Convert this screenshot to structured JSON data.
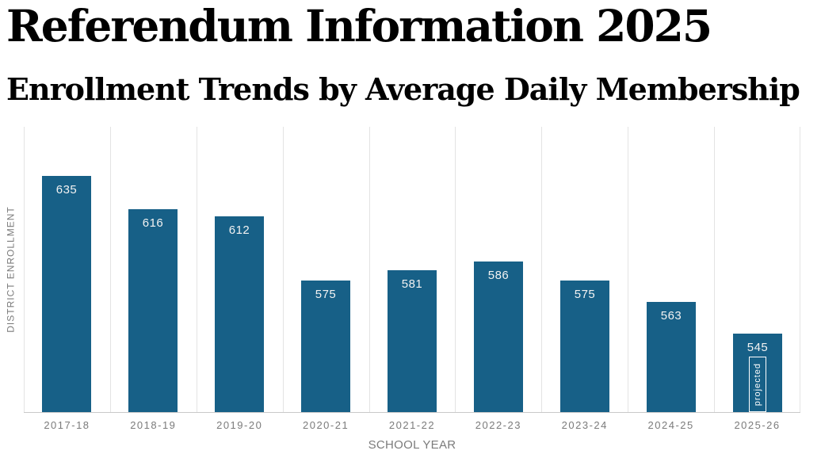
{
  "page": {
    "title": "Referendum Information 2025",
    "subtitle": "Enrollment Trends by Average Daily Membership"
  },
  "chart_data": {
    "type": "bar",
    "title": "Enrollment Trends by Average Daily Membership",
    "xlabel": "SCHOOL YEAR",
    "ylabel": "DISTRICT ENROLLMENT",
    "categories": [
      "2017-18",
      "2018-19",
      "2019-20",
      "2020-21",
      "2021-22",
      "2022-23",
      "2023-24",
      "2024-25",
      "2025-26"
    ],
    "values": [
      635,
      616,
      612,
      575,
      581,
      586,
      575,
      563,
      545
    ],
    "ylim": [
      500,
      663
    ],
    "grid": "vertical-only",
    "legend": "none",
    "annotations": [
      {
        "category": "2025-26",
        "label": "projected"
      }
    ],
    "colors": {
      "bar": "#176087",
      "bar_value_label": "#f2f2f2",
      "axis_text": "#7b7b7b",
      "gridline": "#e3e3e3",
      "baseline": "#c9c9c9",
      "title_text": "#000000",
      "background": "#ffffff"
    }
  }
}
